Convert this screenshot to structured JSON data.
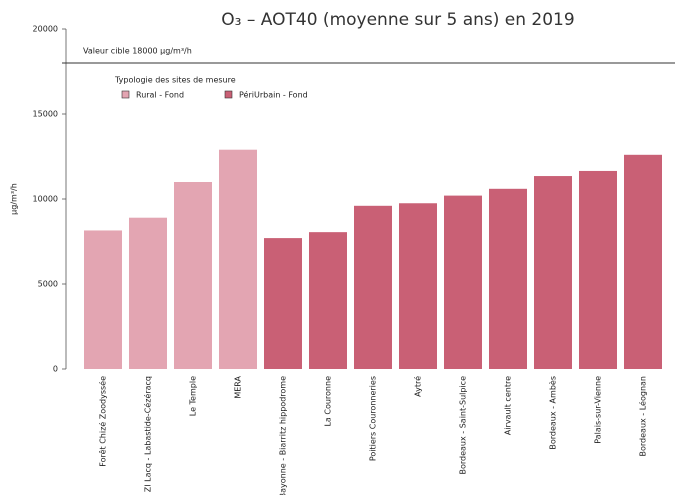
{
  "chart_data": {
    "type": "bar",
    "title": "O₃ – AOT40 (moyenne sur 5 ans) en 2019",
    "y_label": "µg/m³/h",
    "categories": [
      "Forêt Chizé Zoodyssée",
      "ZI Lacq - Labastide-Cézéracq",
      "Le Temple",
      "MERA",
      "Bayonne - Biarritz hippodrome",
      "La Couronne",
      "Poitiers Couronneries",
      "Aytré",
      "Bordeaux - Saint-Sulpice",
      "Airvault centre",
      "Bordeaux - Ambès",
      "Palais-sur-Vienne",
      "Bordeaux - Léognan"
    ],
    "legend_title": "Typologie des sites de mesure",
    "series": [
      {
        "name": "Rural - Fond",
        "color": "#e3a5b2",
        "values": [
          8150,
          8900,
          11000,
          12900,
          null,
          null,
          null,
          null,
          null,
          null,
          null,
          null,
          null
        ]
      },
      {
        "name": "PériUrbain - Fond",
        "color": "#c96075",
        "values": [
          null,
          null,
          null,
          null,
          7700,
          8050,
          9600,
          9750,
          10200,
          10600,
          11350,
          11650,
          12600
        ]
      }
    ],
    "reference": {
      "value": 18000,
      "label": "Valeur cible 18000 µg/m³/h"
    },
    "ylim": [
      0,
      20000
    ],
    "yticks": [
      0,
      5000,
      10000,
      15000,
      20000
    ],
    "legend": "top-left"
  }
}
